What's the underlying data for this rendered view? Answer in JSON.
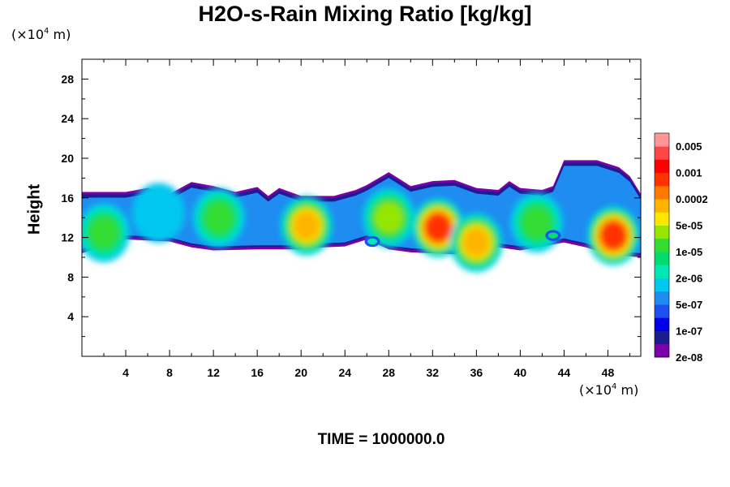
{
  "title": "H2O-s-Rain Mixing Ratio [kg/kg]",
  "time_label": "TIME = 1000000.0",
  "y_unit": {
    "prefix": "(×10",
    "exp": "4",
    "suffix": " m)"
  },
  "x_unit": {
    "prefix": "(×10",
    "exp": "4",
    "suffix": " m)"
  },
  "chart_data": {
    "type": "heatmap",
    "title": "H2O-s-Rain Mixing Ratio [kg/kg]",
    "xlabel": "",
    "ylabel": "Height",
    "xlim": [
      0,
      51
    ],
    "ylim": [
      0,
      30
    ],
    "x_ticks": [
      4,
      8,
      12,
      16,
      20,
      24,
      28,
      32,
      36,
      40,
      44,
      48
    ],
    "y_ticks": [
      4,
      8,
      12,
      16,
      20,
      24,
      28
    ],
    "colorbar": {
      "labels": [
        "0.005",
        "0.001",
        "0.0002",
        "5e-05",
        "1e-05",
        "2e-06",
        "5e-07",
        "1e-07",
        "2e-08"
      ],
      "colors": [
        "#7a00a8",
        "#1c1c90",
        "#0000e6",
        "#1e50f0",
        "#1e8cf0",
        "#00c8f0",
        "#00e6b4",
        "#00dc6e",
        "#32dc32",
        "#96e600",
        "#ffe600",
        "#ffb400",
        "#ff7800",
        "#ff3200",
        "#ff0000",
        "#ff4646",
        "#ff9696"
      ]
    },
    "top_contour": [
      [
        0,
        16.6
      ],
      [
        4,
        16.6
      ],
      [
        6,
        17.0
      ],
      [
        8,
        16.4
      ],
      [
        10,
        17.6
      ],
      [
        12,
        17.2
      ],
      [
        14,
        16.6
      ],
      [
        16,
        17.1
      ],
      [
        17,
        16.2
      ],
      [
        18,
        17.0
      ],
      [
        20,
        16.2
      ],
      [
        23,
        16.2
      ],
      [
        25,
        16.8
      ],
      [
        26,
        17.3
      ],
      [
        28,
        18.6
      ],
      [
        30,
        17.2
      ],
      [
        32,
        17.7
      ],
      [
        34,
        17.8
      ],
      [
        36,
        17.0
      ],
      [
        38,
        16.8
      ],
      [
        39,
        17.7
      ],
      [
        40,
        17.0
      ],
      [
        42,
        16.8
      ],
      [
        43,
        17.2
      ],
      [
        44,
        19.8
      ],
      [
        47,
        19.8
      ],
      [
        49,
        19.1
      ],
      [
        50,
        18.2
      ],
      [
        51,
        16.4
      ]
    ],
    "bottom_contour": [
      [
        0,
        10.4
      ],
      [
        2,
        11.2
      ],
      [
        4,
        11.8
      ],
      [
        6,
        11.7
      ],
      [
        8,
        11.6
      ],
      [
        10,
        11.0
      ],
      [
        12,
        10.7
      ],
      [
        16,
        10.8
      ],
      [
        20,
        10.8
      ],
      [
        22,
        11.0
      ],
      [
        24,
        11.1
      ],
      [
        26,
        11.8
      ],
      [
        28,
        10.8
      ],
      [
        30,
        10.5
      ],
      [
        34,
        10.3
      ],
      [
        36,
        10.8
      ],
      [
        38,
        11.0
      ],
      [
        40,
        10.7
      ],
      [
        42,
        11.1
      ],
      [
        44,
        11.5
      ],
      [
        46,
        11.0
      ],
      [
        48,
        10.3
      ],
      [
        51,
        10.0
      ]
    ],
    "cells": [
      {
        "x": 2.0,
        "y": 12.5,
        "level": 8
      },
      {
        "x": 7.0,
        "y": 14.5,
        "level": 5
      },
      {
        "x": 12.5,
        "y": 14.0,
        "level": 8
      },
      {
        "x": 20.5,
        "y": 13.2,
        "level": 11
      },
      {
        "x": 28.0,
        "y": 14.0,
        "level": 9
      },
      {
        "x": 32.5,
        "y": 13.0,
        "level": 13
      },
      {
        "x": 36.0,
        "y": 11.5,
        "level": 11
      },
      {
        "x": 41.5,
        "y": 13.5,
        "level": 8
      },
      {
        "x": 48.5,
        "y": 12.2,
        "level": 13
      }
    ],
    "isolated_patches": [
      {
        "x": 26.5,
        "y": 11.6,
        "level": 6
      },
      {
        "x": 43.0,
        "y": 12.2,
        "level": 7
      }
    ]
  }
}
